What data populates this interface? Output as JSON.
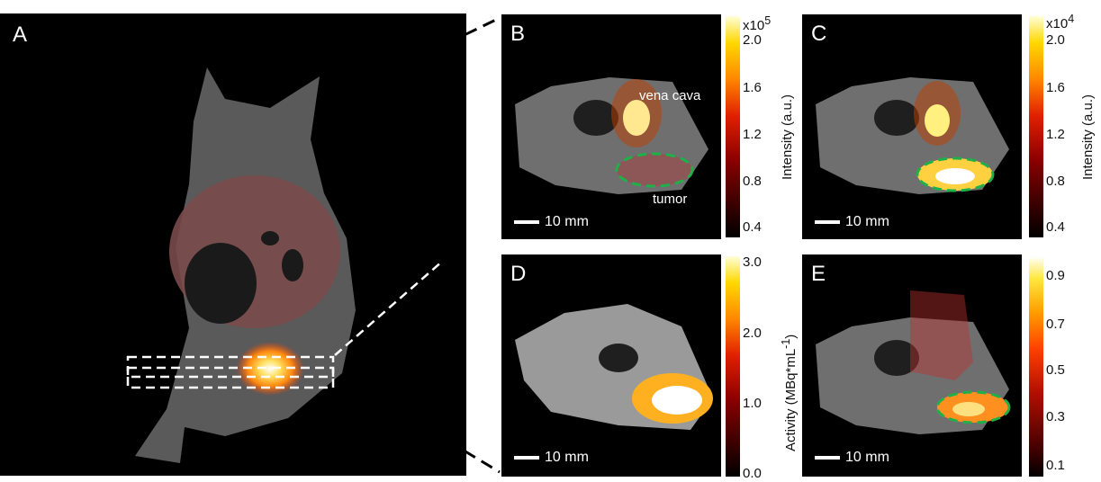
{
  "panels": {
    "a": "A",
    "b": "B",
    "c": "C",
    "d": "D",
    "e": "E"
  },
  "scale_bar": "10 mm",
  "annotations": {
    "vena_cava": "vena cava",
    "tumor": "tumor"
  },
  "colorbar_b": {
    "exponent": "x10",
    "exponent_power": "5",
    "ticks": [
      "2.0",
      "1.6",
      "1.2",
      "0.8",
      "0.4"
    ],
    "label": "Intensity (a.u.)"
  },
  "colorbar_c": {
    "exponent": "x10",
    "exponent_power": "4",
    "ticks": [
      "2.0",
      "1.6",
      "1.2",
      "0.8",
      "0.4"
    ],
    "label": "Intensity (a.u.)"
  },
  "colorbar_d": {
    "ticks": [
      "3.0",
      "2.0",
      "1.0",
      "0.0"
    ],
    "label": "Activity (MBq*mL",
    "label_sup": "-1",
    "label_end": ")"
  },
  "colorbar_e": {
    "ticks": [
      "0.9",
      "0.7",
      "0.5",
      "0.3",
      "0.1"
    ]
  },
  "colors": {
    "outline": "#1fb04a",
    "background": "#000000"
  }
}
